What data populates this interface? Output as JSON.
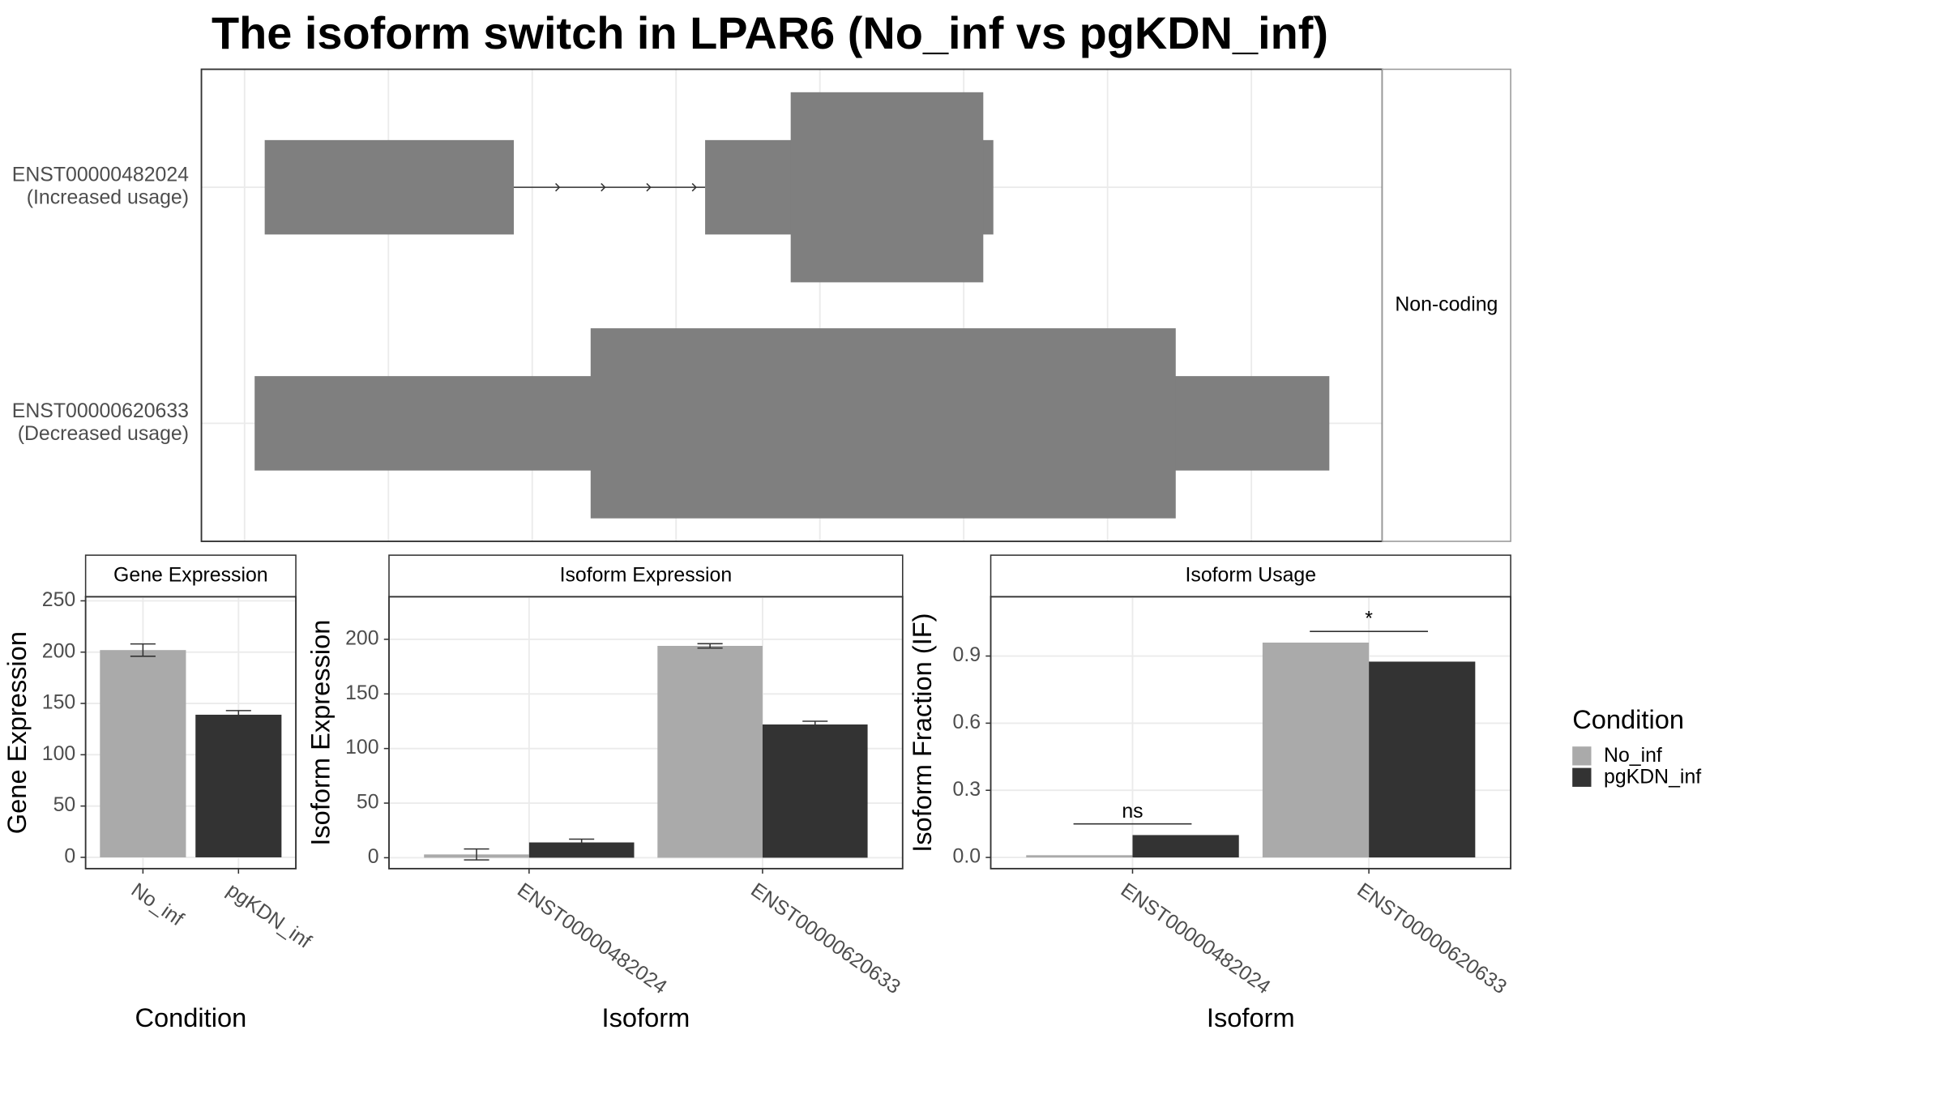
{
  "chart_data": [
    {
      "type": "transcript",
      "title": "The isoform switch in LPAR6 (No_inf vs pgKDN_inf)",
      "strip": "Non-coding",
      "xlim": [
        -300,
        7910
      ],
      "xticks": [
        0,
        1000,
        2000,
        3000,
        4000,
        5000,
        6000,
        7000
      ],
      "grid": true,
      "color": "#7f7f7f",
      "isoforms": [
        {
          "name": "ENST00000482024",
          "note": "(Increased usage)",
          "exons": [
            [
              140,
              1872
            ],
            [
              3202,
              5206
            ]
          ],
          "thick": [
            [
              3797,
              5136
            ]
          ]
        },
        {
          "name": "ENST00000620633",
          "note": "(Decreased usage)",
          "exons": [
            [
              70,
              7542
            ]
          ],
          "thick": [
            [
              2406,
              6474
            ]
          ]
        }
      ]
    },
    {
      "type": "bar",
      "strip": "Gene Expression",
      "xlabel": "Condition",
      "ylabel": "Gene Expression",
      "categories": [
        "No_inf",
        "pgKDN_inf"
      ],
      "values": [
        202,
        139
      ],
      "errors": [
        6,
        4
      ],
      "colors": [
        "#aaaaaa",
        "#333333"
      ],
      "ylim": [
        -11,
        254
      ],
      "yticks": [
        0,
        50,
        100,
        150,
        200,
        250
      ],
      "grid": true
    },
    {
      "type": "grouped-bar",
      "strip": "Isoform Expression",
      "xlabel": "Isoform",
      "ylabel": "Isoform Expression",
      "categories": [
        "ENST00000482024",
        "ENST00000620633"
      ],
      "series": [
        {
          "color": "#aaaaaa",
          "values": [
            3,
            194
          ],
          "errors": [
            5,
            2
          ]
        },
        {
          "color": "#333333",
          "values": [
            14,
            122
          ],
          "errors": [
            3,
            3
          ]
        }
      ],
      "ylim": [
        -10,
        239
      ],
      "yticks": [
        0,
        50,
        100,
        150,
        200
      ],
      "grid": true
    },
    {
      "type": "grouped-bar",
      "strip": "Isoform Usage",
      "xlabel": "Isoform",
      "ylabel": "Isoform Fraction (IF)",
      "categories": [
        "ENST00000482024",
        "ENST00000620633"
      ],
      "series": [
        {
          "name": "No_inf",
          "color": "#aaaaaa",
          "values": [
            0.01,
            0.96
          ]
        },
        {
          "name": "pgKDN_inf",
          "color": "#333333",
          "values": [
            0.1,
            0.875
          ]
        }
      ],
      "significance": [
        "ns",
        "*"
      ],
      "significance_y": [
        0.15,
        1.01
      ],
      "ylim": [
        -0.05,
        1.165
      ],
      "yticks": [
        {
          "value": 0,
          "label": "0.0"
        },
        {
          "value": 0.3,
          "label": "0.3"
        },
        {
          "value": 0.6,
          "label": "0.6"
        },
        {
          "value": 0.9,
          "label": "0.9"
        }
      ],
      "grid": true,
      "legend_title": "Condition",
      "legend": "right"
    }
  ]
}
